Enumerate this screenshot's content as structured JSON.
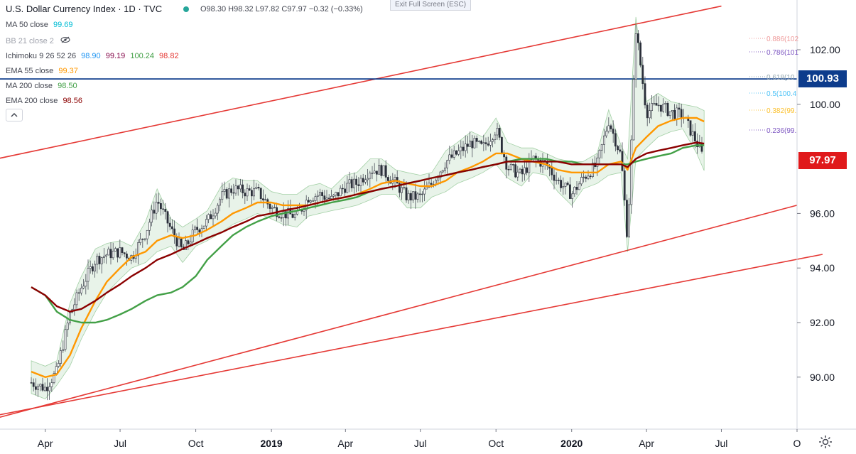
{
  "symbol": {
    "title": "U.S. Dollar Currency Index · 1D · TVC",
    "ohlc": "O98.30  H98.32  L97.82  C97.97  −0.32 (−0.33%)"
  },
  "exit_fullscreen": "Exit Full Screen (ESC)",
  "indicators": [
    {
      "label": "MA 50 close",
      "value": "99.69",
      "color": "#00bcd4"
    },
    {
      "label": "BB 21 close 2",
      "value": "",
      "color": "#787b86"
    },
    {
      "label": "Ichimoku 9 26 52 26",
      "values": [
        "98.90",
        "99.19",
        "100.24",
        "98.82"
      ],
      "colors": [
        "#2196f3",
        "#880e4f",
        "#43a047",
        "#e53935"
      ]
    },
    {
      "label": "EMA 55 close",
      "value": "99.37",
      "color": "#ff9800"
    },
    {
      "label": "MA 200 close",
      "value": "98.50",
      "color": "#43a047"
    },
    {
      "label": "EMA 200 close",
      "value": "98.56",
      "color": "#8b0000"
    }
  ],
  "price_tags": {
    "horizontal_level": "100.93",
    "last_price": "97.97",
    "horizontal_color": "#0d3c8c",
    "last_color": "#e0191b"
  },
  "fib_labels": [
    "0.886(102",
    "0.786(101",
    "0.618(10",
    "0.5(100.4",
    "0.382(99.",
    "0.236(99."
  ],
  "chart_data": {
    "type": "line",
    "title": "U.S. Dollar Currency Index · 1D · TVC",
    "x_labels": [
      "Apr",
      "Jul",
      "Oct",
      "2019",
      "Apr",
      "Jul",
      "Oct",
      "2020",
      "Apr",
      "Jul",
      "O"
    ],
    "y_ticks": [
      "102.00",
      "100.00",
      "96.00",
      "94.00",
      "92.00",
      "90.00"
    ],
    "ylim": [
      88.3,
      103.7
    ],
    "grid": false,
    "close_series": {
      "x": [
        "2018-03-15",
        "2018-04-01",
        "2018-04-15",
        "2018-05-01",
        "2018-05-15",
        "2018-06-01",
        "2018-06-15",
        "2018-07-01",
        "2018-07-15",
        "2018-08-01",
        "2018-08-15",
        "2018-09-01",
        "2018-09-15",
        "2018-10-01",
        "2018-10-15",
        "2018-11-01",
        "2018-11-15",
        "2018-12-01",
        "2018-12-15",
        "2019-01-01",
        "2019-01-15",
        "2019-02-01",
        "2019-02-15",
        "2019-03-01",
        "2019-03-15",
        "2019-04-01",
        "2019-04-15",
        "2019-05-01",
        "2019-05-15",
        "2019-06-01",
        "2019-06-15",
        "2019-07-01",
        "2019-07-15",
        "2019-08-01",
        "2019-08-15",
        "2019-09-01",
        "2019-09-15",
        "2019-10-01",
        "2019-10-15",
        "2019-11-01",
        "2019-11-15",
        "2019-12-01",
        "2019-12-15",
        "2020-01-01",
        "2020-01-15",
        "2020-02-01",
        "2020-02-15",
        "2020-03-01",
        "2020-03-09",
        "2020-03-19",
        "2020-04-01",
        "2020-04-15",
        "2020-05-01",
        "2020-05-15",
        "2020-06-01",
        "2020-06-10"
      ],
      "y": [
        89.8,
        89.6,
        90.2,
        92.3,
        93.3,
        94.3,
        94.5,
        94.6,
        94.4,
        95.3,
        96.5,
        95.4,
        94.6,
        95.4,
        95.7,
        96.6,
        96.9,
        96.8,
        96.8,
        96.2,
        96.0,
        95.9,
        96.6,
        96.7,
        96.5,
        97.0,
        97.1,
        97.6,
        97.6,
        97.1,
        96.6,
        96.6,
        97.1,
        97.9,
        98.2,
        98.6,
        98.4,
        99.1,
        97.7,
        97.4,
        98.0,
        97.8,
        97.2,
        96.7,
        97.3,
        97.8,
        99.4,
        98.1,
        95.0,
        102.8,
        99.7,
        100.0,
        99.7,
        99.6,
        98.6,
        97.97
      ]
    },
    "series": [
      {
        "name": "EMA 55 close",
        "color": "#ff9800",
        "values": [
          90.2,
          90.0,
          90.1,
          90.8,
          91.8,
          92.8,
          93.5,
          94.0,
          94.4,
          94.6,
          95.0,
          95.2,
          95.1,
          95.2,
          95.4,
          95.7,
          96.0,
          96.2,
          96.4,
          96.4,
          96.3,
          96.3,
          96.3,
          96.4,
          96.5,
          96.6,
          96.7,
          96.9,
          97.1,
          97.2,
          97.1,
          97.0,
          97.0,
          97.2,
          97.5,
          97.7,
          97.9,
          98.2,
          98.2,
          98.0,
          97.9,
          97.8,
          97.6,
          97.5,
          97.5,
          97.5,
          97.8,
          97.9,
          97.6,
          98.4,
          98.8,
          99.2,
          99.4,
          99.5,
          99.5,
          99.37
        ]
      },
      {
        "name": "MA 200 close",
        "color": "#43a047",
        "values": [
          93.3,
          93.0,
          92.4,
          92.1,
          92.0,
          92.0,
          92.1,
          92.3,
          92.5,
          92.8,
          93.0,
          93.1,
          93.3,
          93.7,
          94.3,
          94.8,
          95.2,
          95.5,
          95.7,
          95.9,
          96.0,
          96.1,
          96.2,
          96.3,
          96.4,
          96.5,
          96.6,
          96.8,
          96.9,
          97.0,
          97.1,
          97.2,
          97.3,
          97.4,
          97.5,
          97.6,
          97.7,
          97.8,
          97.9,
          98.0,
          98.0,
          98.0,
          97.9,
          97.9,
          97.8,
          97.8,
          97.8,
          97.8,
          97.8,
          97.9,
          98.0,
          98.1,
          98.2,
          98.4,
          98.5,
          98.5
        ]
      },
      {
        "name": "EMA 200 close",
        "color": "#8b0000",
        "values": [
          93.3,
          93.0,
          92.6,
          92.4,
          92.5,
          92.8,
          93.1,
          93.4,
          93.7,
          94.0,
          94.3,
          94.5,
          94.7,
          94.9,
          95.1,
          95.3,
          95.5,
          95.7,
          95.9,
          96.0,
          96.1,
          96.2,
          96.3,
          96.4,
          96.5,
          96.6,
          96.7,
          96.8,
          96.9,
          97.0,
          97.1,
          97.2,
          97.3,
          97.4,
          97.5,
          97.6,
          97.7,
          97.8,
          97.9,
          97.9,
          97.9,
          97.9,
          97.9,
          97.8,
          97.8,
          97.8,
          97.8,
          97.8,
          97.7,
          98.0,
          98.2,
          98.3,
          98.4,
          98.5,
          98.6,
          98.56
        ]
      }
    ],
    "horizontal_line": 100.93,
    "channel_lines": [
      {
        "from": [
          "2018-02-01",
          98.0
        ],
        "to": [
          "2020-07-01",
          103.6
        ]
      },
      {
        "from": [
          "2018-02-01",
          88.5
        ],
        "to": [
          "2020-10-01",
          96.3
        ]
      },
      {
        "from": [
          "2018-02-01",
          88.6
        ],
        "to": [
          "2020-11-01",
          94.5
        ]
      }
    ]
  }
}
